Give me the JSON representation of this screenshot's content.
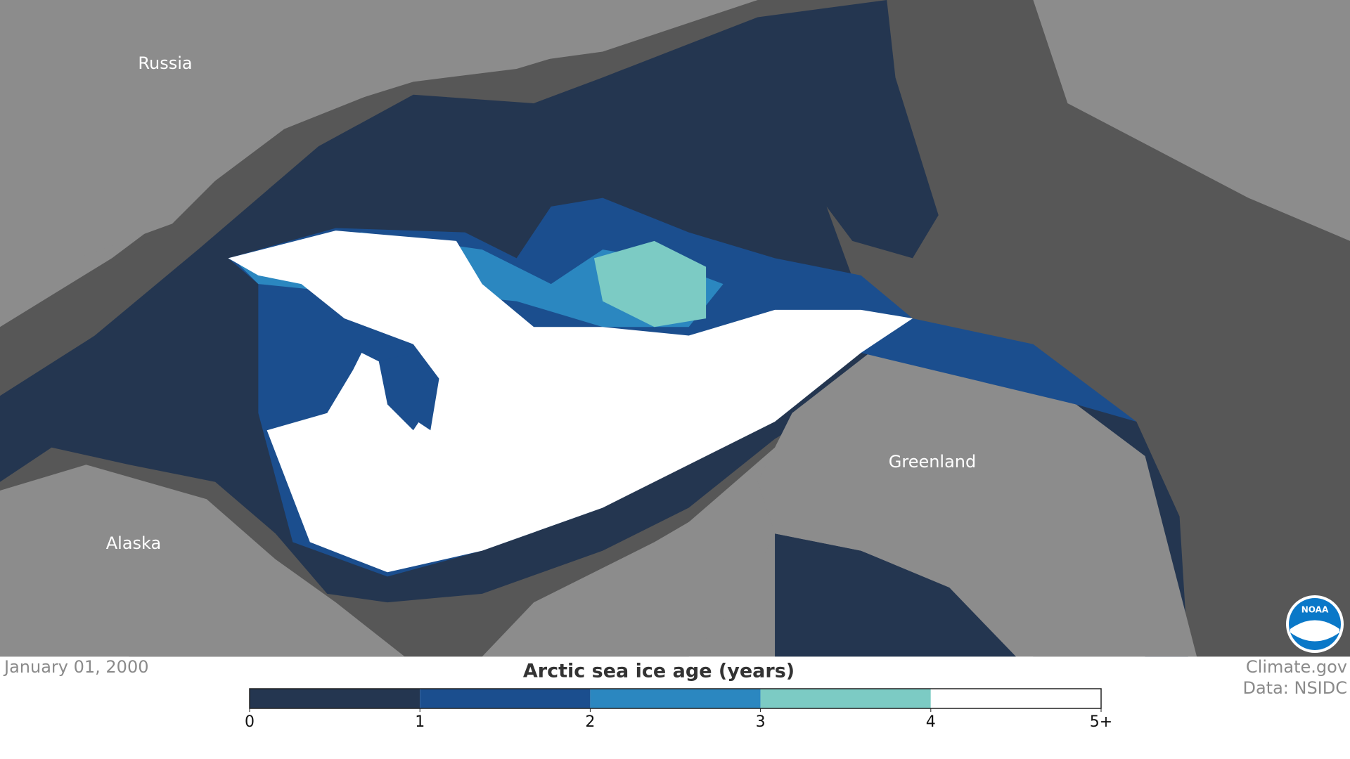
{
  "map": {
    "labels": [
      "Russia",
      "Alaska",
      "Greenland"
    ]
  },
  "footer": {
    "date": "January 01, 2000",
    "credit": "Climate.gov",
    "source": "Data: NSIDC",
    "logo": "NOAA"
  },
  "legend": {
    "title": "Arctic sea ice age (years)",
    "ticks": [
      0,
      1,
      2,
      3,
      4,
      {
        "value": 5,
        "label": "5+"
      }
    ],
    "colors": [
      "#243650",
      "#1b4e8e",
      "#2b87c0",
      "#7ccbc4",
      "#ffffff"
    ]
  }
}
